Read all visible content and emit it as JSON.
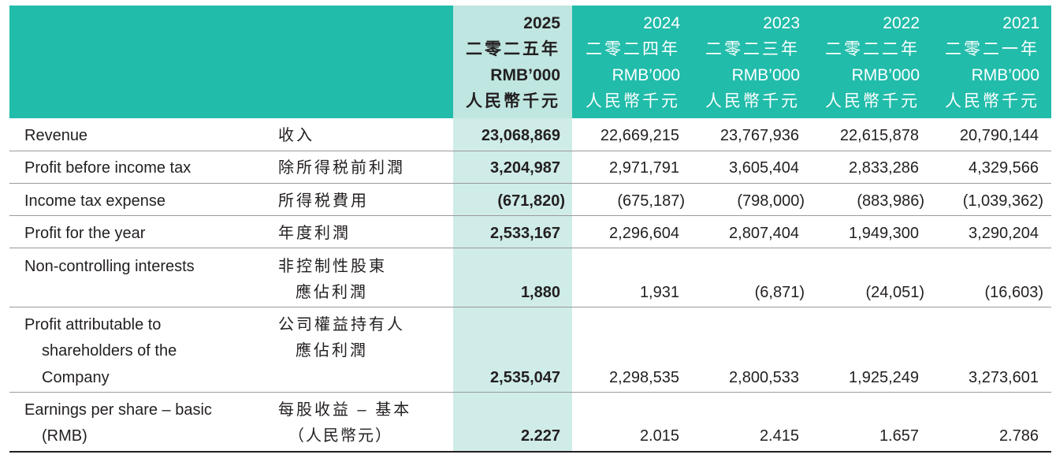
{
  "columns": [
    {
      "year": "2025",
      "zh_year": "二零二五年",
      "unit": "RMB’000",
      "zh_unit": "人民幣千元"
    },
    {
      "year": "2024",
      "zh_year": "二零二四年",
      "unit": "RMB’000",
      "zh_unit": "人民幣千元"
    },
    {
      "year": "2023",
      "zh_year": "二零二三年",
      "unit": "RMB’000",
      "zh_unit": "人民幣千元"
    },
    {
      "year": "2022",
      "zh_year": "二零二二年",
      "unit": "RMB’000",
      "zh_unit": "人民幣千元"
    },
    {
      "year": "2021",
      "zh_year": "二零二一年",
      "unit": "RMB’000",
      "zh_unit": "人民幣千元"
    }
  ],
  "rows": [
    {
      "en": [
        "Revenue"
      ],
      "zh": [
        "收入"
      ],
      "values": [
        "23,068,869",
        "22,669,215",
        "23,767,936",
        "22,615,878",
        "20,790,144"
      ]
    },
    {
      "en": [
        "Profit before income tax"
      ],
      "zh": [
        "除所得税前利潤"
      ],
      "values": [
        "3,204,987",
        "2,971,791",
        "3,605,404",
        "2,833,286",
        "4,329,566"
      ]
    },
    {
      "en": [
        "Income tax expense"
      ],
      "zh": [
        "所得税費用"
      ],
      "values": [
        "(671,820)",
        "(675,187)",
        "(798,000)",
        "(883,986)",
        "(1,039,362)"
      ]
    },
    {
      "en": [
        "Profit for the year"
      ],
      "zh": [
        "年度利潤"
      ],
      "values": [
        "2,533,167",
        "2,296,604",
        "2,807,404",
        "1,949,300",
        "3,290,204"
      ]
    },
    {
      "en": [
        "Non-controlling interests"
      ],
      "zh": [
        "非控制性股東",
        "應佔利潤"
      ],
      "values": [
        "1,880",
        "1,931",
        "(6,871)",
        "(24,051)",
        "(16,603)"
      ]
    },
    {
      "en": [
        "Profit attributable to",
        "shareholders of the",
        "Company"
      ],
      "zh": [
        "公司權益持有人",
        "應佔利潤"
      ],
      "values": [
        "2,535,047",
        "2,298,535",
        "2,800,533",
        "1,925,249",
        "3,273,601"
      ]
    },
    {
      "en": [
        "Earnings per share – basic",
        "(RMB)"
      ],
      "zh": [
        "每股收益 – 基本",
        "（人民幣元）"
      ],
      "values": [
        "2.227",
        "2.015",
        "2.415",
        "1.657",
        "2.786"
      ]
    }
  ]
}
